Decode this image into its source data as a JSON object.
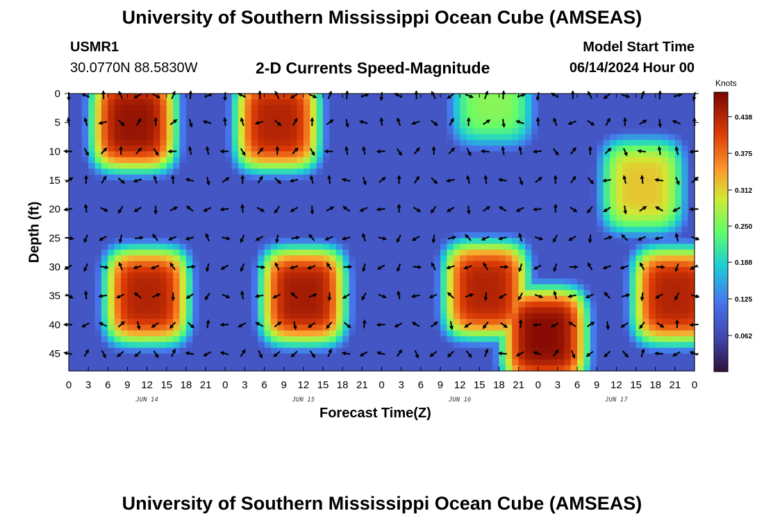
{
  "header": {
    "title": "University of Southern Mississippi Ocean Cube (AMSEAS)",
    "station_id": "USMR1",
    "station_coords": "30.0770N  88.5830W",
    "subtitle": "2-D Currents Speed-Magnitude",
    "model_start_label": "Model Start Time",
    "model_start_value": "06/14/2024 Hour 00"
  },
  "footer": {
    "title": "University of Southern Mississippi Ocean Cube (AMSEAS)"
  },
  "chart_data": {
    "type": "heatmap",
    "title": "2-D Currents Speed-Magnitude",
    "xlabel": "Forecast Time(Z)",
    "ylabel": "Depth (ft)",
    "x_tick_labels": [
      "0",
      "3",
      "6",
      "9",
      "12",
      "15",
      "18",
      "21",
      "0",
      "3",
      "6",
      "9",
      "12",
      "15",
      "18",
      "21",
      "0",
      "3",
      "6",
      "9",
      "12",
      "15",
      "18",
      "21",
      "0",
      "3",
      "6",
      "9",
      "12",
      "15",
      "18",
      "21",
      "0"
    ],
    "x_day_labels": [
      "JUN 14",
      "JUN 15",
      "JUN 16",
      "JUN 17"
    ],
    "y_ticks": [
      0,
      5,
      10,
      15,
      20,
      25,
      30,
      35,
      40,
      45
    ],
    "ylim": [
      0,
      48
    ],
    "xlim_hours": [
      0,
      96
    ],
    "colorbar": {
      "unit": "Knots",
      "ticks": [
        "0.438",
        "0.375",
        "0.312",
        "0.250",
        "0.188",
        "0.125",
        "0.062"
      ],
      "range": [
        0,
        0.48
      ]
    },
    "speed_blobs": [
      {
        "t_hours": 10,
        "depth_ft": 5,
        "peak_kn": 0.46
      },
      {
        "t_hours": 32,
        "depth_ft": 5,
        "peak_kn": 0.44
      },
      {
        "t_hours": 12,
        "depth_ft": 35,
        "peak_kn": 0.44
      },
      {
        "t_hours": 36,
        "depth_ft": 35,
        "peak_kn": 0.45
      },
      {
        "t_hours": 64,
        "depth_ft": 34,
        "peak_kn": 0.44
      },
      {
        "t_hours": 73,
        "depth_ft": 42,
        "peak_kn": 0.47
      },
      {
        "t_hours": 93,
        "depth_ft": 35,
        "peak_kn": 0.44
      },
      {
        "t_hours": 88,
        "depth_ft": 16,
        "peak_kn": 0.32
      },
      {
        "t_hours": 65,
        "depth_ft": 1,
        "peak_kn": 0.26
      }
    ],
    "arrow_depths_ft": [
      0,
      5,
      10,
      15,
      20,
      25,
      30,
      35,
      40,
      45
    ]
  }
}
